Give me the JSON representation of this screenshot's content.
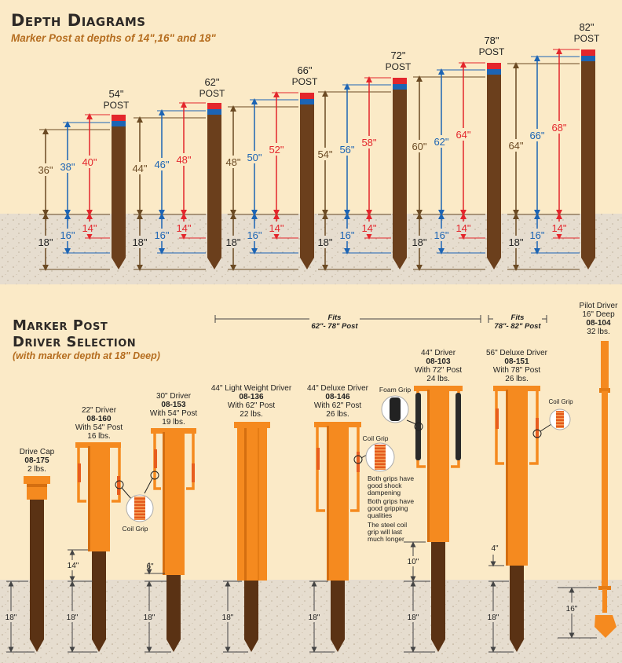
{
  "depth_section": {
    "title": "Depth Diagrams",
    "subtitle": "Marker Post at depths of 14\",16\" and 18\"",
    "post_word": "POST",
    "posts": [
      {
        "length": "54\"",
        "above": [
          "36\"",
          "38\"",
          "40\""
        ]
      },
      {
        "length": "62\"",
        "above": [
          "44\"",
          "46\"",
          "48\""
        ]
      },
      {
        "length": "66\"",
        "above": [
          "48\"",
          "50\"",
          "52\""
        ]
      },
      {
        "length": "72\"",
        "above": [
          "54\"",
          "56\"",
          "58\""
        ]
      },
      {
        "length": "78\"",
        "above": [
          "60\"",
          "62\"",
          "64\""
        ]
      },
      {
        "length": "82\"",
        "above": [
          "64\"",
          "66\"",
          "68\""
        ]
      }
    ],
    "below": [
      "18\"",
      "16\"",
      "14\""
    ]
  },
  "driver_section": {
    "title_line1": "Marker Post",
    "title_line2": "Driver Selection",
    "subtitle": "(with marker depth at 18\" Deep)",
    "fits_a_top": "Fits",
    "fits_a_range": "62\"- 78\" Post",
    "fits_b_top": "Fits",
    "fits_b_range": "78\"- 82\" Post",
    "depth_label": "18\"",
    "drivers": [
      {
        "lines": [
          "Drive Cap"
        ],
        "code": "08-175",
        "weight": "2 lbs."
      },
      {
        "lines": [
          "22\" Driver"
        ],
        "code": "08-160",
        "post": "With 54\" Post",
        "weight": "16 lbs.",
        "gap": "14\""
      },
      {
        "lines": [
          "30\" Driver"
        ],
        "code": "08-153",
        "post": "With 54\" Post",
        "weight": "19 lbs.",
        "gap": "6\""
      },
      {
        "lines": [
          "44\" Light Weight Driver"
        ],
        "code": "08-136",
        "post": "With 62\" Post",
        "weight": "22 lbs."
      },
      {
        "lines": [
          "44\" Deluxe Driver"
        ],
        "code": "08-146",
        "post": "With 62\" Post",
        "weight": "26 lbs."
      },
      {
        "lines": [
          "44\" Driver"
        ],
        "code": "08-103",
        "post": "With 72\" Post",
        "weight": "24 lbs.",
        "gap": "10\""
      },
      {
        "lines": [
          "56\" Deluxe Driver"
        ],
        "code": "08-151",
        "post": "With 78\" Post",
        "weight": "26 lbs.",
        "gap": "4\""
      },
      {
        "lines": [
          "Pilot Driver",
          "16\" Deep"
        ],
        "code": "08-104",
        "weight": "32 lbs.",
        "depth": "16\""
      }
    ],
    "callouts": {
      "coil_grip": "Coil Grip",
      "foam_grip": "Foam Grip",
      "notes": [
        "Both grips have good shock dampening",
        "Both grips have good gripping qualities",
        "The steel coil grip will last much longer"
      ]
    }
  },
  "colors": {
    "background": "#fbeac7",
    "ground": "#e6ddcf",
    "post": "#6b3f1c",
    "driver": "#f58a1f",
    "blue": "#1c64b4",
    "red": "#e3262c",
    "depth_brown": "#6b4a23"
  }
}
